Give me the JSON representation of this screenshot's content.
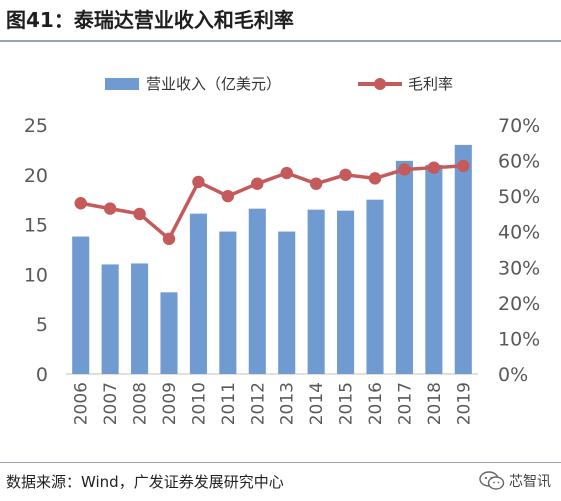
{
  "header": {
    "title": "图41：泰瑞达营业收入和毛利率"
  },
  "footer": {
    "source": "数据来源：Wind，广发证券发展研究中心",
    "watermark": "芯智讯",
    "watermark_icon": "wechat-icon"
  },
  "colors": {
    "bar": "#6f9bd1",
    "line": "#c55a5a",
    "axis_text": "#595959",
    "axis_line": "#bfbfbf"
  },
  "chart_data": {
    "type": "bar",
    "categories": [
      "2006",
      "2007",
      "2008",
      "2009",
      "2010",
      "2011",
      "2012",
      "2013",
      "2014",
      "2015",
      "2016",
      "2017",
      "2018",
      "2019"
    ],
    "series": [
      {
        "name": "营业收入（亿美元）",
        "type": "bar",
        "axis": "left",
        "values": [
          13.8,
          11.0,
          11.1,
          8.2,
          16.1,
          14.3,
          16.6,
          14.3,
          16.5,
          16.4,
          17.5,
          21.4,
          21.0,
          23.0
        ]
      },
      {
        "name": "毛利率",
        "type": "line",
        "axis": "right",
        "values": [
          48,
          46.5,
          45,
          38,
          54,
          50,
          53.5,
          56.5,
          53.5,
          56,
          55,
          57.5,
          58,
          58.5
        ]
      }
    ],
    "yleft": {
      "lim": [
        0,
        25
      ],
      "ticks": [
        "0",
        "5",
        "10",
        "15",
        "20",
        "25"
      ],
      "tick_values": [
        0,
        5,
        10,
        15,
        20,
        25
      ]
    },
    "yright": {
      "lim": [
        0,
        70
      ],
      "ticks": [
        "0%",
        "10%",
        "20%",
        "30%",
        "40%",
        "50%",
        "60%",
        "70%"
      ],
      "tick_values": [
        0,
        10,
        20,
        30,
        40,
        50,
        60,
        70
      ]
    },
    "legend_position": "top",
    "grid": false
  }
}
